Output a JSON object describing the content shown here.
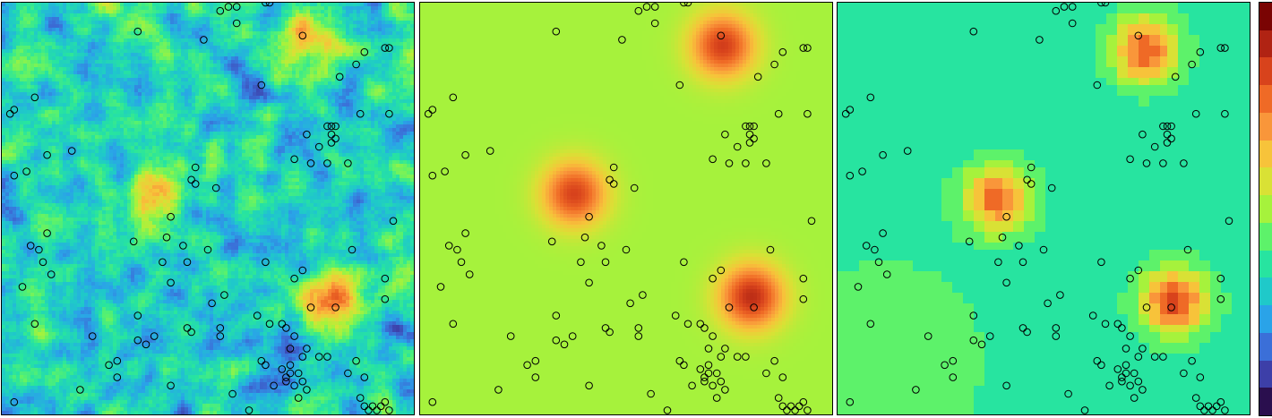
{
  "chart_data": {
    "type": "heatmap",
    "panels": [
      {
        "name": "panel-1",
        "kind": "simulated-field",
        "points": "observation_points"
      },
      {
        "name": "panel-2",
        "kind": "smooth-interpolation",
        "points": "observation_points"
      },
      {
        "name": "panel-3",
        "kind": "nearest-neighbour-interpolation",
        "points": "observation_points"
      }
    ],
    "colormap": [
      "#2a0f4e",
      "#3d3fa8",
      "#3b6fd8",
      "#2aa3e8",
      "#1fc9c9",
      "#27e4a0",
      "#5df26a",
      "#a6f23c",
      "#d9e135",
      "#f7c33a",
      "#f9963a",
      "#ef6a26",
      "#d8431c",
      "#b02313",
      "#7a0403"
    ],
    "colorbar": {
      "levels": 15,
      "position": "right",
      "tick_labels": []
    },
    "high_zones": [
      {
        "x": 0.8,
        "y": 0.71,
        "v": 0.9
      },
      {
        "x": 0.73,
        "y": 0.1,
        "v": 0.82
      },
      {
        "x": 0.37,
        "y": 0.46,
        "v": 0.8
      }
    ],
    "observation_points": [
      [
        0.03,
        0.26
      ],
      [
        0.02,
        0.27
      ],
      [
        0.08,
        0.23
      ],
      [
        0.11,
        0.37
      ],
      [
        0.17,
        0.36
      ],
      [
        0.03,
        0.42
      ],
      [
        0.22,
        0.81
      ],
      [
        0.33,
        0.07
      ],
      [
        0.49,
        0.09
      ],
      [
        0.55,
        0.01
      ],
      [
        0.53,
        0.02
      ],
      [
        0.57,
        0.01
      ],
      [
        0.64,
        0.0
      ],
      [
        0.65,
        0.0
      ],
      [
        0.57,
        0.05
      ],
      [
        0.73,
        0.08
      ],
      [
        0.93,
        0.11
      ],
      [
        0.94,
        0.11
      ],
      [
        0.88,
        0.12
      ],
      [
        0.86,
        0.15
      ],
      [
        0.82,
        0.18
      ],
      [
        0.63,
        0.2
      ],
      [
        0.87,
        0.27
      ],
      [
        0.94,
        0.27
      ],
      [
        0.79,
        0.3
      ],
      [
        0.8,
        0.3
      ],
      [
        0.81,
        0.3
      ],
      [
        0.8,
        0.32
      ],
      [
        0.74,
        0.32
      ],
      [
        0.81,
        0.33
      ],
      [
        0.8,
        0.34
      ],
      [
        0.77,
        0.35
      ],
      [
        0.71,
        0.38
      ],
      [
        0.79,
        0.39
      ],
      [
        0.84,
        0.39
      ],
      [
        0.75,
        0.39
      ],
      [
        0.47,
        0.4
      ],
      [
        0.46,
        0.43
      ],
      [
        0.47,
        0.44
      ],
      [
        0.52,
        0.45
      ],
      [
        0.06,
        0.41
      ],
      [
        0.95,
        0.53
      ],
      [
        0.41,
        0.52
      ],
      [
        0.11,
        0.56
      ],
      [
        0.07,
        0.59
      ],
      [
        0.09,
        0.6
      ],
      [
        0.32,
        0.58
      ],
      [
        0.4,
        0.57
      ],
      [
        0.44,
        0.59
      ],
      [
        0.39,
        0.63
      ],
      [
        0.45,
        0.63
      ],
      [
        0.5,
        0.6
      ],
      [
        0.85,
        0.6
      ],
      [
        0.1,
        0.63
      ],
      [
        0.12,
        0.66
      ],
      [
        0.05,
        0.69
      ],
      [
        0.41,
        0.68
      ],
      [
        0.54,
        0.71
      ],
      [
        0.51,
        0.73
      ],
      [
        0.64,
        0.63
      ],
      [
        0.73,
        0.65
      ],
      [
        0.71,
        0.67
      ],
      [
        0.93,
        0.67
      ],
      [
        0.93,
        0.72
      ],
      [
        0.08,
        0.78
      ],
      [
        0.33,
        0.76
      ],
      [
        0.45,
        0.79
      ],
      [
        0.46,
        0.8
      ],
      [
        0.53,
        0.79
      ],
      [
        0.53,
        0.81
      ],
      [
        0.33,
        0.82
      ],
      [
        0.37,
        0.81
      ],
      [
        0.35,
        0.83
      ],
      [
        0.62,
        0.76
      ],
      [
        0.65,
        0.78
      ],
      [
        0.69,
        0.79
      ],
      [
        0.71,
        0.81
      ],
      [
        0.7,
        0.84
      ],
      [
        0.74,
        0.84
      ],
      [
        0.73,
        0.86
      ],
      [
        0.77,
        0.86
      ],
      [
        0.79,
        0.86
      ],
      [
        0.81,
        0.74
      ],
      [
        0.75,
        0.74
      ],
      [
        0.68,
        0.78
      ],
      [
        0.7,
        0.88
      ],
      [
        0.64,
        0.88
      ],
      [
        0.63,
        0.87
      ],
      [
        0.28,
        0.87
      ],
      [
        0.26,
        0.88
      ],
      [
        0.28,
        0.91
      ],
      [
        0.19,
        0.94
      ],
      [
        0.68,
        0.89
      ],
      [
        0.69,
        0.91
      ],
      [
        0.69,
        0.92
      ],
      [
        0.7,
        0.9
      ],
      [
        0.72,
        0.9
      ],
      [
        0.66,
        0.93
      ],
      [
        0.71,
        0.93
      ],
      [
        0.73,
        0.92
      ],
      [
        0.74,
        0.94
      ],
      [
        0.72,
        0.96
      ],
      [
        0.84,
        0.9
      ],
      [
        0.86,
        0.87
      ],
      [
        0.88,
        0.91
      ],
      [
        0.87,
        0.96
      ],
      [
        0.88,
        0.98
      ],
      [
        0.89,
        0.99
      ],
      [
        0.9,
        0.98
      ],
      [
        0.91,
        0.99
      ],
      [
        0.92,
        0.98
      ],
      [
        0.93,
        0.97
      ],
      [
        0.94,
        0.99
      ],
      [
        0.03,
        0.97
      ],
      [
        0.41,
        0.93
      ],
      [
        0.56,
        0.95
      ],
      [
        0.6,
        0.99
      ]
    ]
  }
}
